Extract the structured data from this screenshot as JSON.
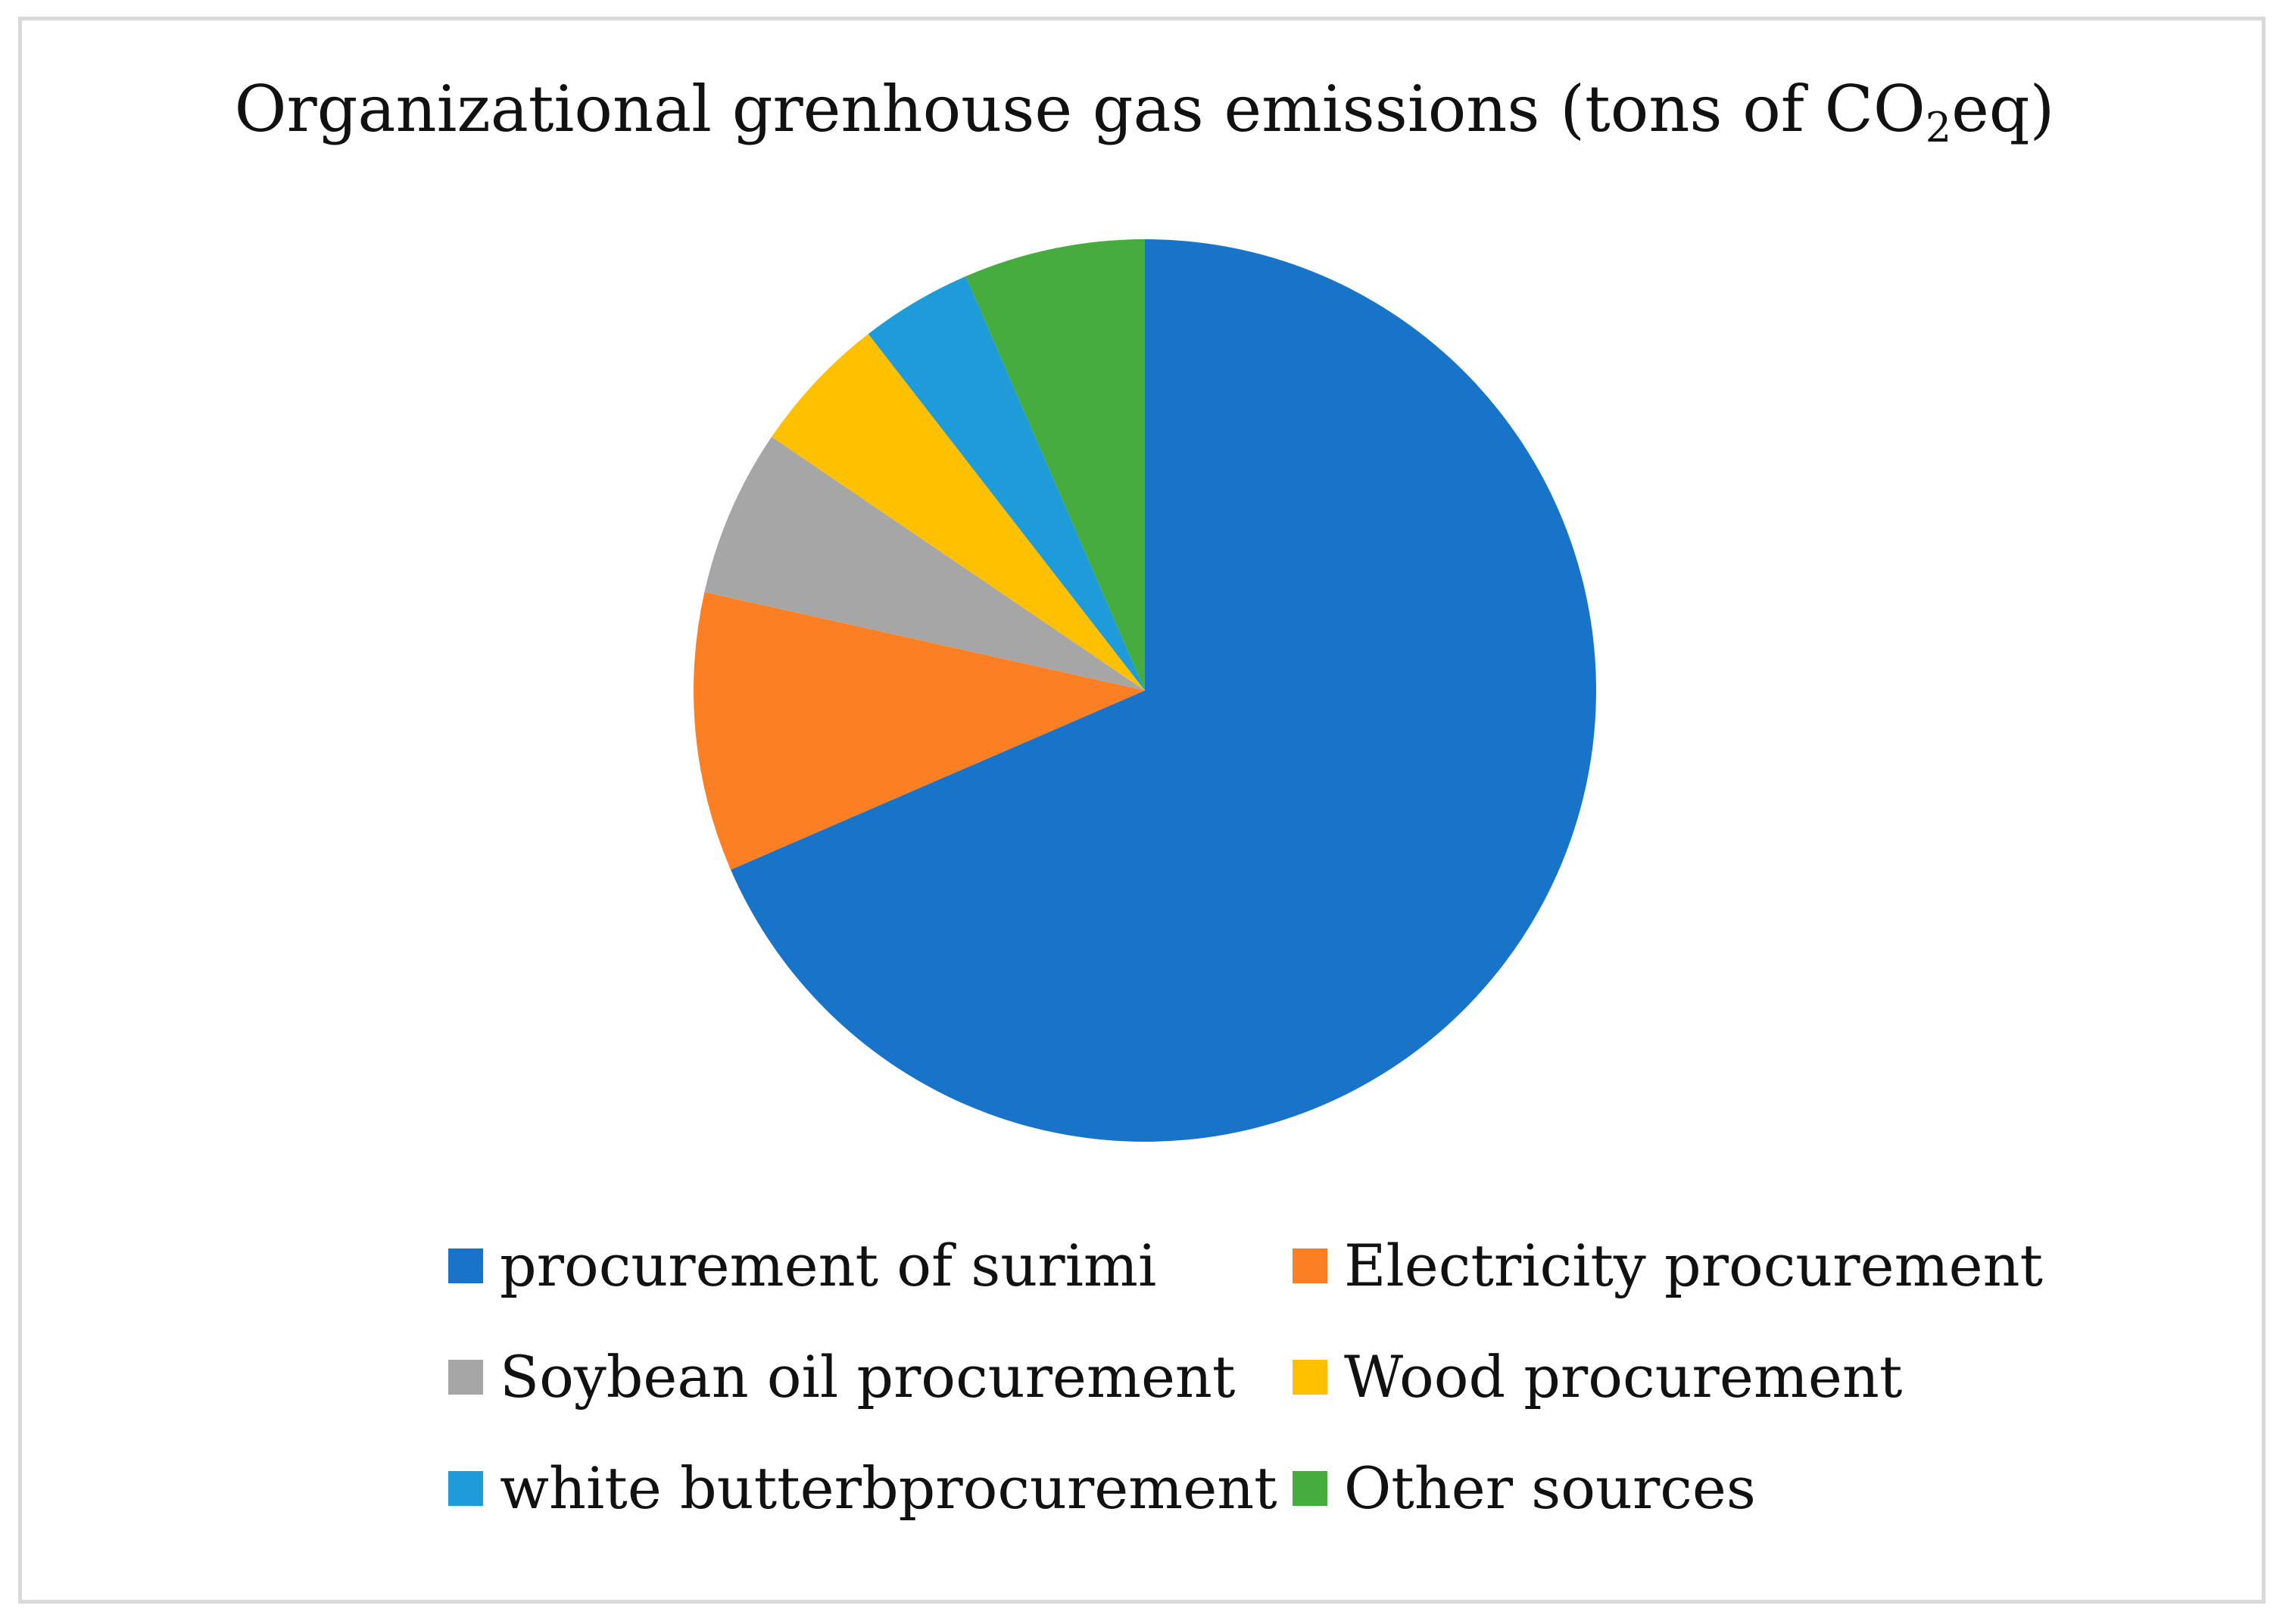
{
  "chart_data": {
    "type": "pie",
    "title": "Organizational grenhouse gas emissions (tons of CO₂eq)",
    "title_parts": {
      "before": "Organizational grenhouse gas emissions (tons of CO",
      "subscript": "2",
      "after": "eq)"
    },
    "unit": "%",
    "slices": [
      {
        "label": "procurement of surimi",
        "value": 68.5,
        "color": "#1874C9"
      },
      {
        "label": "Electricity procurement",
        "value": 10.0,
        "color": "#FD7F23"
      },
      {
        "label": "Soybean oil procurement",
        "value": 6.0,
        "color": "#A6A6A6"
      },
      {
        "label": "Wood procurement",
        "value": 5.0,
        "color": "#FFC000"
      },
      {
        "label": "white butterbprocurement",
        "value": 4.0,
        "color": "#1E9BD9"
      },
      {
        "label": "Other sources",
        "value": 6.5,
        "color": "#47AC3E"
      }
    ],
    "start_angle": "12 o'clock",
    "direction": "clockwise",
    "legend_position": "bottom"
  }
}
